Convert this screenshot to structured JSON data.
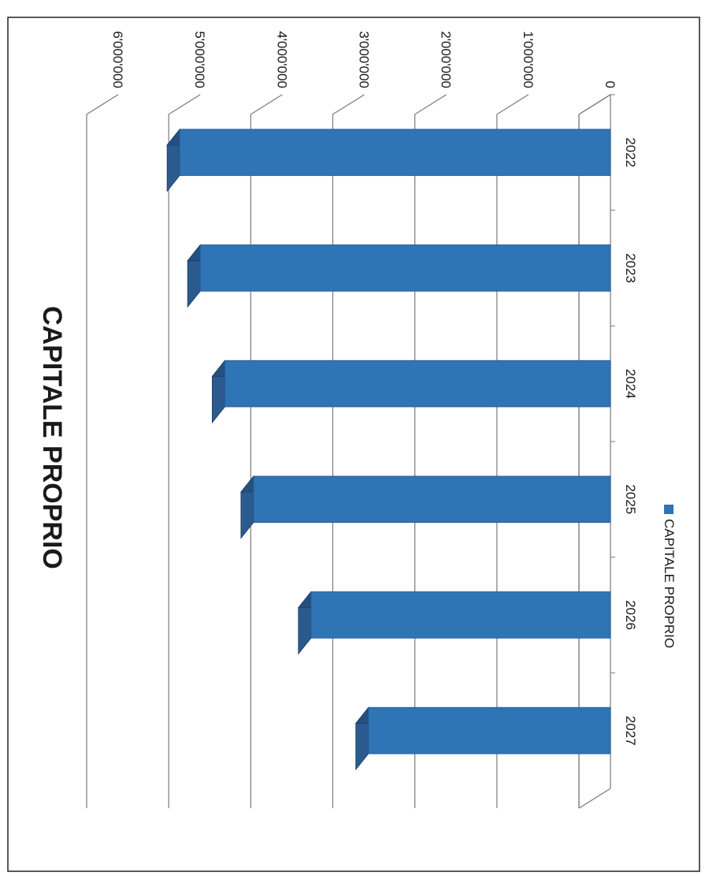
{
  "chart_data": {
    "type": "bar",
    "title": "CAPITALE PROPRIO",
    "categories": [
      "2022",
      "2023",
      "2024",
      "2025",
      "2026",
      "2027"
    ],
    "series": [
      {
        "name": "CAPITALE PROPRIO",
        "values": [
          5250000,
          5000000,
          4700000,
          4350000,
          3650000,
          2950000
        ]
      }
    ],
    "y_ticks": [
      "0",
      "1'000'000",
      "2'000'000",
      "3'000'000",
      "4'000'000",
      "5'000'000",
      "6'000'000"
    ],
    "ylim": [
      0,
      6000000
    ],
    "grid": true,
    "legend": "bottom",
    "colors": {
      "bar_front": "#2f74b5",
      "bar_top": "#2b5a8e",
      "bar_side": "#24507f",
      "grid": "#7a7a7a"
    }
  }
}
